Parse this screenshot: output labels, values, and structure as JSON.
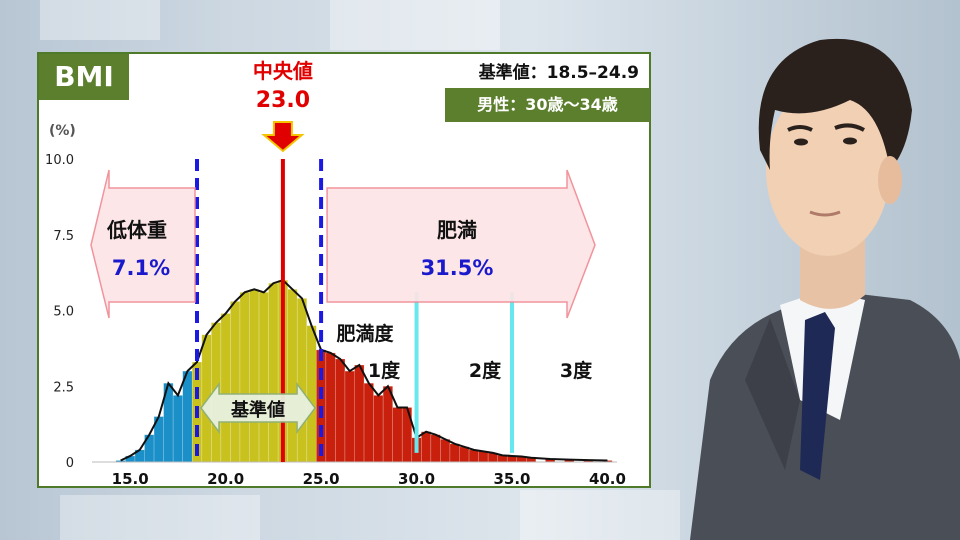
{
  "colors": {
    "panel_border": "#4f7a2a",
    "tag_bg": "#5b7f2d",
    "underweight": "#1a8fc8",
    "normal": "#c9c21e",
    "obese": "#c8200c",
    "median": "#e00000",
    "boundary": "#1a1ae0",
    "grade_line": "#66e8ee",
    "arrow_fill": "#fde4e6",
    "arrow_stroke": "#f08a94"
  },
  "labels": {
    "bmi": "BMI",
    "standard": "基準値：18.5–24.9",
    "demographic": "男性：30歳〜34歳",
    "median_title": "中央値",
    "median_value": "23.0",
    "unit": "(%)",
    "underweight": "低体重",
    "underweight_pct": "7.1%",
    "obese": "肥満",
    "obese_pct": "31.5%",
    "obesity_degree": "肥満度",
    "normal": "基準値",
    "grade1": "1度",
    "grade2": "2度",
    "grade3": "3度"
  },
  "chart_data": {
    "type": "area",
    "xlim": [
      13,
      40.5
    ],
    "ylim": [
      0,
      10
    ],
    "xticks": [
      "15.0",
      "20.0",
      "25.0",
      "30.0",
      "35.0",
      "40.0"
    ],
    "yticks": [
      "0",
      "2.5",
      "5.0",
      "7.5",
      "10.0"
    ],
    "median": 23.0,
    "boundaries": [
      18.5,
      25.0
    ],
    "grade_lines": [
      30.0,
      35.0
    ],
    "x": [
      14.5,
      15,
      15.5,
      16,
      16.5,
      17,
      17.5,
      18,
      18.5,
      19,
      19.5,
      20,
      20.5,
      21,
      21.5,
      22,
      22.5,
      23,
      23.5,
      24,
      24.5,
      25,
      25.5,
      26,
      26.5,
      27,
      27.5,
      28,
      28.5,
      29,
      29.5,
      30,
      30.5,
      31,
      31.5,
      32,
      32.5,
      33,
      33.5,
      34,
      34.5,
      35,
      35.5,
      36,
      37,
      38,
      39,
      40
    ],
    "y": [
      0.05,
      0.2,
      0.4,
      0.9,
      1.5,
      2.6,
      2.2,
      3.0,
      3.3,
      4.2,
      4.6,
      4.9,
      5.3,
      5.6,
      5.7,
      5.6,
      5.9,
      6.0,
      5.7,
      5.4,
      4.5,
      3.7,
      3.6,
      3.4,
      3.0,
      3.2,
      2.6,
      2.2,
      2.5,
      1.8,
      1.8,
      0.8,
      1.0,
      0.9,
      0.75,
      0.6,
      0.5,
      0.4,
      0.35,
      0.3,
      0.22,
      0.2,
      0.18,
      0.14,
      0.1,
      0.08,
      0.06,
      0.05
    ]
  }
}
